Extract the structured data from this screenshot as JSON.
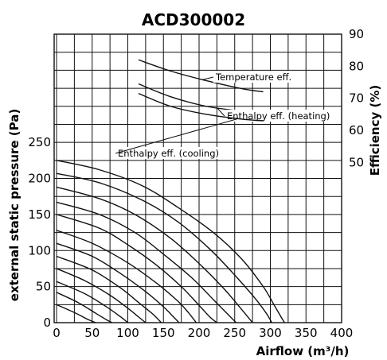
{
  "chart_data": {
    "type": "line",
    "title": "ACD300002",
    "xlabel": "Airflow (m³/h)",
    "ylabel_left": "external static pressure (Pa)",
    "ylabel_right": "Efficiency (%)",
    "xlim": [
      0,
      400
    ],
    "x_ticks": [
      0,
      50,
      100,
      150,
      200,
      250,
      300,
      350,
      400
    ],
    "ylim_left": [
      0,
      400
    ],
    "y_ticks_left": [
      0,
      50,
      100,
      150,
      200,
      250
    ],
    "ylim_right": [
      0,
      90
    ],
    "y_ticks_right": [
      50,
      60,
      70,
      80,
      90
    ],
    "grid": true,
    "fan_curves": [
      {
        "x": [
          0,
          60,
          120,
          170,
          220,
          260,
          290,
          305,
          315,
          320
        ],
        "y": [
          225,
          212,
          190,
          160,
          125,
          88,
          50,
          25,
          8,
          0
        ]
      },
      {
        "x": [
          0,
          60,
          120,
          170,
          215,
          250,
          280,
          295,
          302
        ],
        "y": [
          207,
          194,
          170,
          140,
          102,
          66,
          32,
          12,
          0
        ]
      },
      {
        "x": [
          0,
          60,
          110,
          160,
          200,
          235,
          260,
          275
        ],
        "y": [
          188,
          172,
          150,
          117,
          82,
          47,
          18,
          0
        ]
      },
      {
        "x": [
          0,
          60,
          110,
          150,
          190,
          220,
          240,
          252
        ],
        "y": [
          167,
          150,
          125,
          95,
          62,
          32,
          12,
          0
        ]
      },
      {
        "x": [
          0,
          60,
          100,
          140,
          175,
          200,
          215,
          225
        ],
        "y": [
          150,
          131,
          108,
          80,
          50,
          24,
          8,
          0
        ]
      },
      {
        "x": [
          0,
          50,
          100,
          140,
          170,
          185,
          196
        ],
        "y": [
          128,
          110,
          83,
          55,
          30,
          14,
          0
        ]
      },
      {
        "x": [
          0,
          50,
          90,
          125,
          150,
          163,
          172
        ],
        "y": [
          110,
          92,
          68,
          43,
          22,
          9,
          0
        ]
      },
      {
        "x": [
          0,
          50,
          90,
          115,
          135,
          147
        ],
        "y": [
          92,
          73,
          48,
          28,
          12,
          0
        ]
      },
      {
        "x": [
          0,
          40,
          75,
          100,
          115,
          125
        ],
        "y": [
          75,
          58,
          38,
          20,
          8,
          0
        ]
      },
      {
        "x": [
          0,
          40,
          70,
          90,
          100
        ],
        "y": [
          57,
          40,
          22,
          8,
          0
        ]
      },
      {
        "x": [
          0,
          30,
          55,
          70,
          78
        ],
        "y": [
          42,
          28,
          13,
          4,
          0
        ]
      },
      {
        "x": [
          0,
          25,
          45,
          55
        ],
        "y": [
          25,
          14,
          4,
          0
        ]
      }
    ],
    "series": [
      {
        "name": "Temperature eff.",
        "x": [
          115,
          160,
          210,
          260,
          290
        ],
        "y": [
          82,
          78.5,
          75.5,
          73,
          72
        ]
      },
      {
        "name": "Enthalpy eff. (heating)",
        "x": [
          115,
          160,
          210,
          260,
          290
        ],
        "y": [
          74.5,
          70.5,
          67.5,
          66,
          65.5
        ]
      },
      {
        "name": "Enthalpy eff. (cooling)",
        "x": [
          115,
          160,
          210,
          260,
          290
        ],
        "y": [
          71.5,
          67.5,
          65,
          63.5,
          63
        ]
      }
    ]
  }
}
